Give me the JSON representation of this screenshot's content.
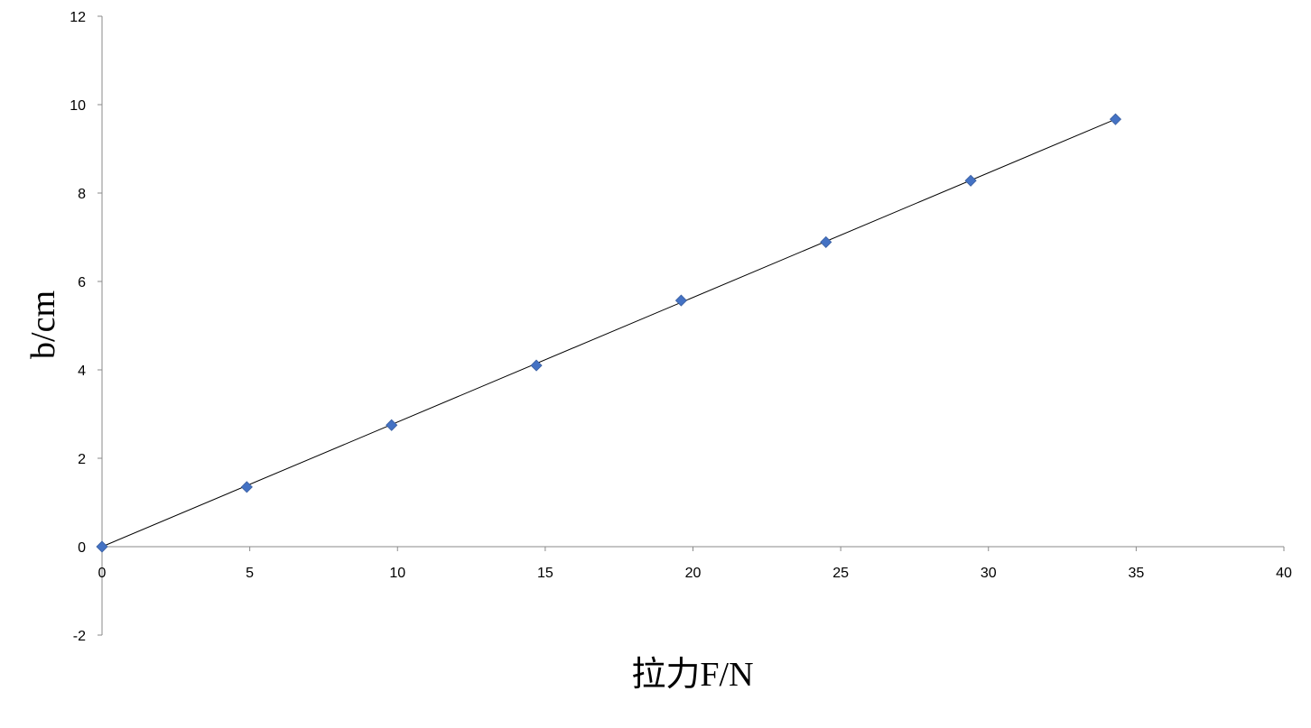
{
  "chart_data": {
    "type": "scatter",
    "title": "",
    "xlabel": "拉力F/N",
    "ylabel": "b/cm",
    "xlim": [
      0,
      40
    ],
    "ylim": [
      -2,
      12
    ],
    "x_ticks": [
      0,
      5,
      10,
      15,
      20,
      25,
      30,
      35,
      40
    ],
    "y_ticks": [
      -2,
      0,
      2,
      4,
      6,
      8,
      10,
      12
    ],
    "grid": false,
    "legend": "none",
    "series": [
      {
        "color": "#4472C4",
        "marker": "diamond",
        "x": [
          0,
          4.9,
          9.8,
          14.7,
          19.6,
          24.5,
          29.4,
          34.3
        ],
        "y": [
          0,
          1.35,
          2.75,
          4.1,
          5.57,
          6.89,
          8.28,
          9.67
        ]
      }
    ],
    "trendline": {
      "type": "linear",
      "color": "#000000",
      "from": [
        0,
        0
      ],
      "to": [
        34.3,
        9.67
      ]
    }
  }
}
